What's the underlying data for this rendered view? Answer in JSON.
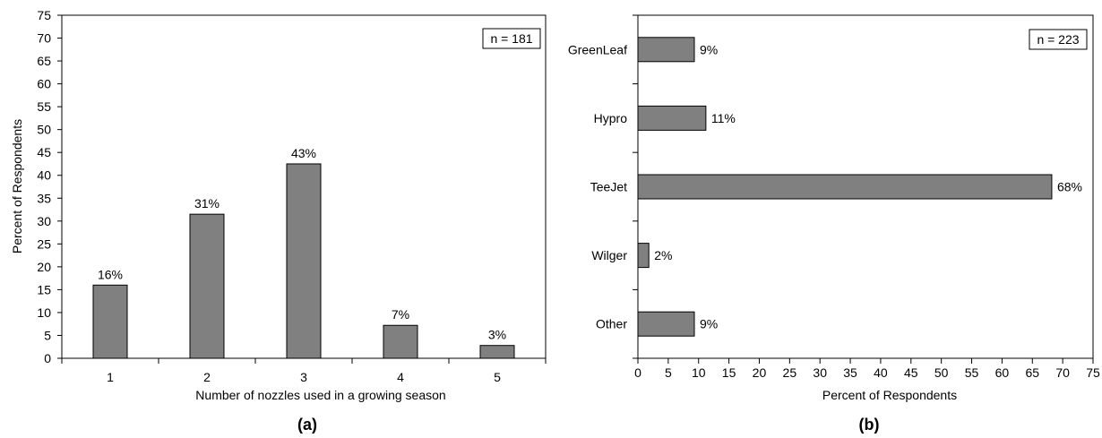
{
  "chart_data": [
    {
      "type": "bar",
      "orientation": "vertical",
      "panel_label": "(a)",
      "annotation": "n = 181",
      "categories": [
        "1",
        "2",
        "3",
        "4",
        "5"
      ],
      "values": [
        16,
        31.5,
        42.5,
        7.2,
        2.8
      ],
      "data_labels": [
        "16%",
        "31%",
        "43%",
        "7%",
        "3%"
      ],
      "xlabel": "Number of nozzles used in a growing season",
      "ylabel": "Percent of Respondents",
      "ylim": [
        0,
        75
      ],
      "ticks": [
        "0",
        "5",
        "10",
        "15",
        "20",
        "25",
        "30",
        "35",
        "40",
        "45",
        "50",
        "55",
        "60",
        "65",
        "70",
        "75"
      ],
      "tick_values": [
        0,
        5,
        10,
        15,
        20,
        25,
        30,
        35,
        40,
        45,
        50,
        55,
        60,
        65,
        70,
        75
      ],
      "bar_color": "#808080",
      "grid": false
    },
    {
      "type": "bar",
      "orientation": "horizontal",
      "panel_label": "(b)",
      "annotation": "n = 223",
      "categories": [
        "GreenLeaf",
        "Hypro",
        "TeeJet",
        "Wilger",
        "Other"
      ],
      "values": [
        9.3,
        11.2,
        68.2,
        1.8,
        9.3
      ],
      "data_labels": [
        "9%",
        "11%",
        "68%",
        "2%",
        "9%"
      ],
      "xlabel": "Percent of Respondents",
      "ylabel": "",
      "xlim": [
        0,
        75
      ],
      "ticks": [
        "0",
        "5",
        "10",
        "15",
        "20",
        "25",
        "30",
        "35",
        "40",
        "45",
        "50",
        "55",
        "60",
        "65",
        "70",
        "75"
      ],
      "tick_values": [
        0,
        5,
        10,
        15,
        20,
        25,
        30,
        35,
        40,
        45,
        50,
        55,
        60,
        65,
        70,
        75
      ],
      "bar_color": "#808080",
      "grid": false
    }
  ]
}
